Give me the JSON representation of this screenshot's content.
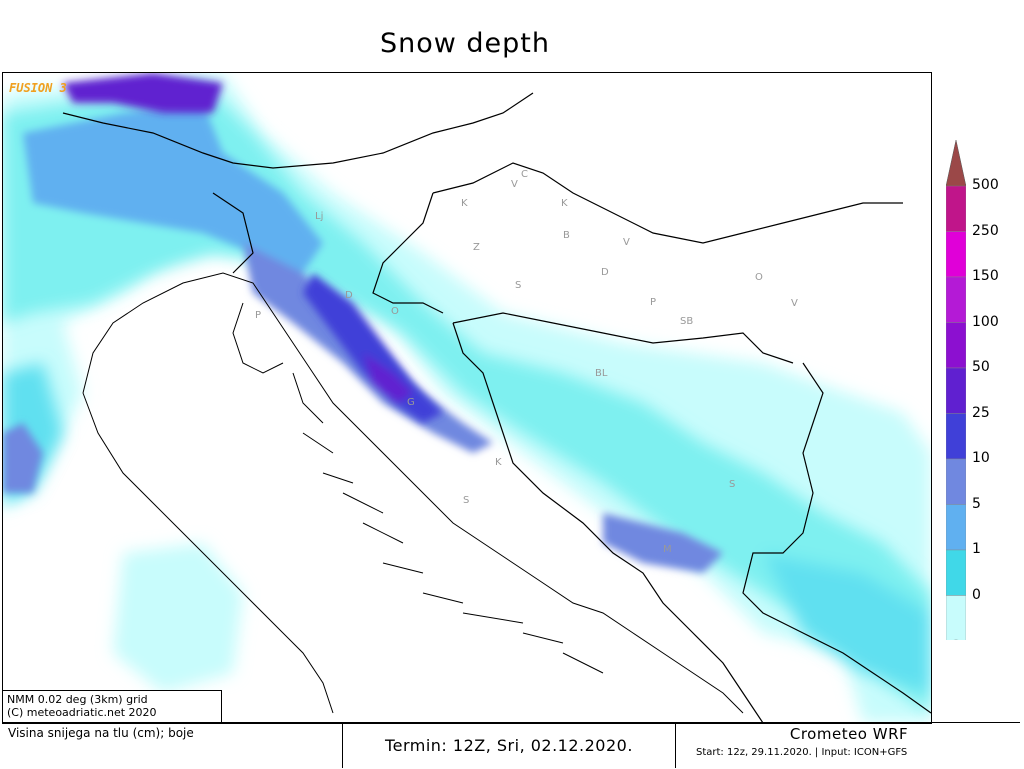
{
  "title": "Snow depth",
  "brand": "FUSION 3",
  "credit": {
    "line1": "NMM 0.02 deg (3km) grid",
    "line2": "(C) meteoadriatic.net 2020"
  },
  "footer": {
    "description": "Visina snijega na tlu (cm); boje",
    "termin": "Termin: 12Z, Sri, 02.12.2020.",
    "model": "Crometeo WRF",
    "start": "Start: 12z, 29.11.2020. | Input: ICON+GFS"
  },
  "legend": {
    "labels": [
      "500",
      "250",
      "150",
      "100",
      "50",
      "25",
      "10",
      "5",
      "1",
      "0"
    ],
    "colors": [
      "#9b4848",
      "#c0158a",
      "#e000d8",
      "#b41ad6",
      "#8c10d0",
      "#6020d0",
      "#4040d8",
      "#7088e0",
      "#60b0f0",
      "#40d8e8",
      "#c8fcfc"
    ]
  },
  "places": [
    "Lj",
    "Z",
    "K",
    "K",
    "V",
    "C",
    "B",
    "V",
    "S",
    "D",
    "P",
    "SB",
    "O",
    "V",
    "P",
    "O",
    "BL",
    "K",
    "S",
    "M",
    "S",
    "D",
    "G"
  ]
}
